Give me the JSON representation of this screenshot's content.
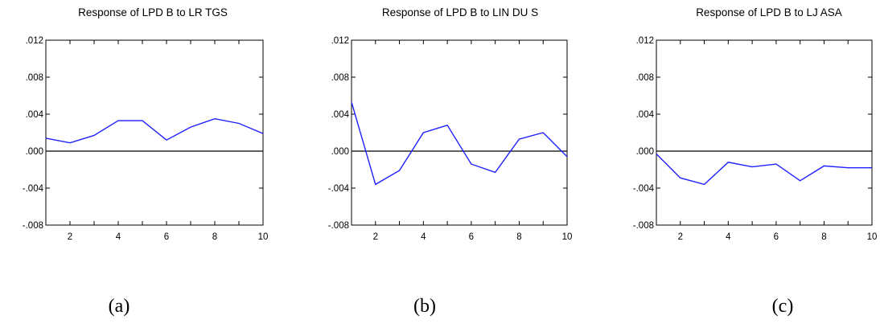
{
  "colors": {
    "series": "#1f1fff",
    "axis": "#000000"
  },
  "chart_data": [
    {
      "type": "line",
      "title": "Response of LPD B to LR TGS",
      "caption": "(a)",
      "x": [
        1,
        2,
        3,
        4,
        5,
        6,
        7,
        8,
        9,
        10
      ],
      "xticks": [
        2,
        4,
        6,
        8,
        10
      ],
      "xlim": [
        1,
        10
      ],
      "ylim": [
        -0.008,
        0.012
      ],
      "yticks": [
        0.012,
        0.008,
        0.004,
        0.0,
        -0.004,
        -0.008
      ],
      "ytick_labels": [
        ".012",
        ".008",
        ".004",
        ".000",
        "-.004",
        "-.008"
      ],
      "series": [
        {
          "values": [
            0.0014,
            0.0009,
            0.0017,
            0.0033,
            0.0033,
            0.0012,
            0.0026,
            0.0035,
            0.003,
            0.0019
          ]
        }
      ],
      "zero_line": true
    },
    {
      "type": "line",
      "title": "Response of LPD B to LIN DU S",
      "caption": "(b)",
      "x": [
        1,
        2,
        3,
        4,
        5,
        6,
        7,
        8,
        9,
        10
      ],
      "xticks": [
        2,
        4,
        6,
        8,
        10
      ],
      "xlim": [
        1,
        10
      ],
      "ylim": [
        -0.008,
        0.012
      ],
      "yticks": [
        0.012,
        0.008,
        0.004,
        0.0,
        -0.004,
        -0.008
      ],
      "ytick_labels": [
        ".012",
        ".008",
        ".004",
        ".000",
        "-.004",
        "-.008"
      ],
      "series": [
        {
          "values": [
            0.0053,
            -0.0036,
            -0.0021,
            0.002,
            0.0028,
            -0.0014,
            -0.0023,
            0.0013,
            0.002,
            -0.0006
          ]
        }
      ],
      "zero_line": true
    },
    {
      "type": "line",
      "title": "Response of LPD B to LJ ASA",
      "caption": "(c)",
      "x": [
        1,
        2,
        3,
        4,
        5,
        6,
        7,
        8,
        9,
        10
      ],
      "xticks": [
        2,
        4,
        6,
        8,
        10
      ],
      "xlim": [
        1,
        10
      ],
      "ylim": [
        -0.008,
        0.012
      ],
      "yticks": [
        0.012,
        0.008,
        0.004,
        0.0,
        -0.004,
        -0.008
      ],
      "ytick_labels": [
        ".012",
        ".008",
        ".004",
        ".000",
        "-.004",
        "-.008"
      ],
      "series": [
        {
          "values": [
            -0.0003,
            -0.0029,
            -0.0036,
            -0.0012,
            -0.0017,
            -0.0014,
            -0.0032,
            -0.0016,
            -0.0018,
            -0.0018
          ]
        }
      ],
      "zero_line": true
    }
  ]
}
